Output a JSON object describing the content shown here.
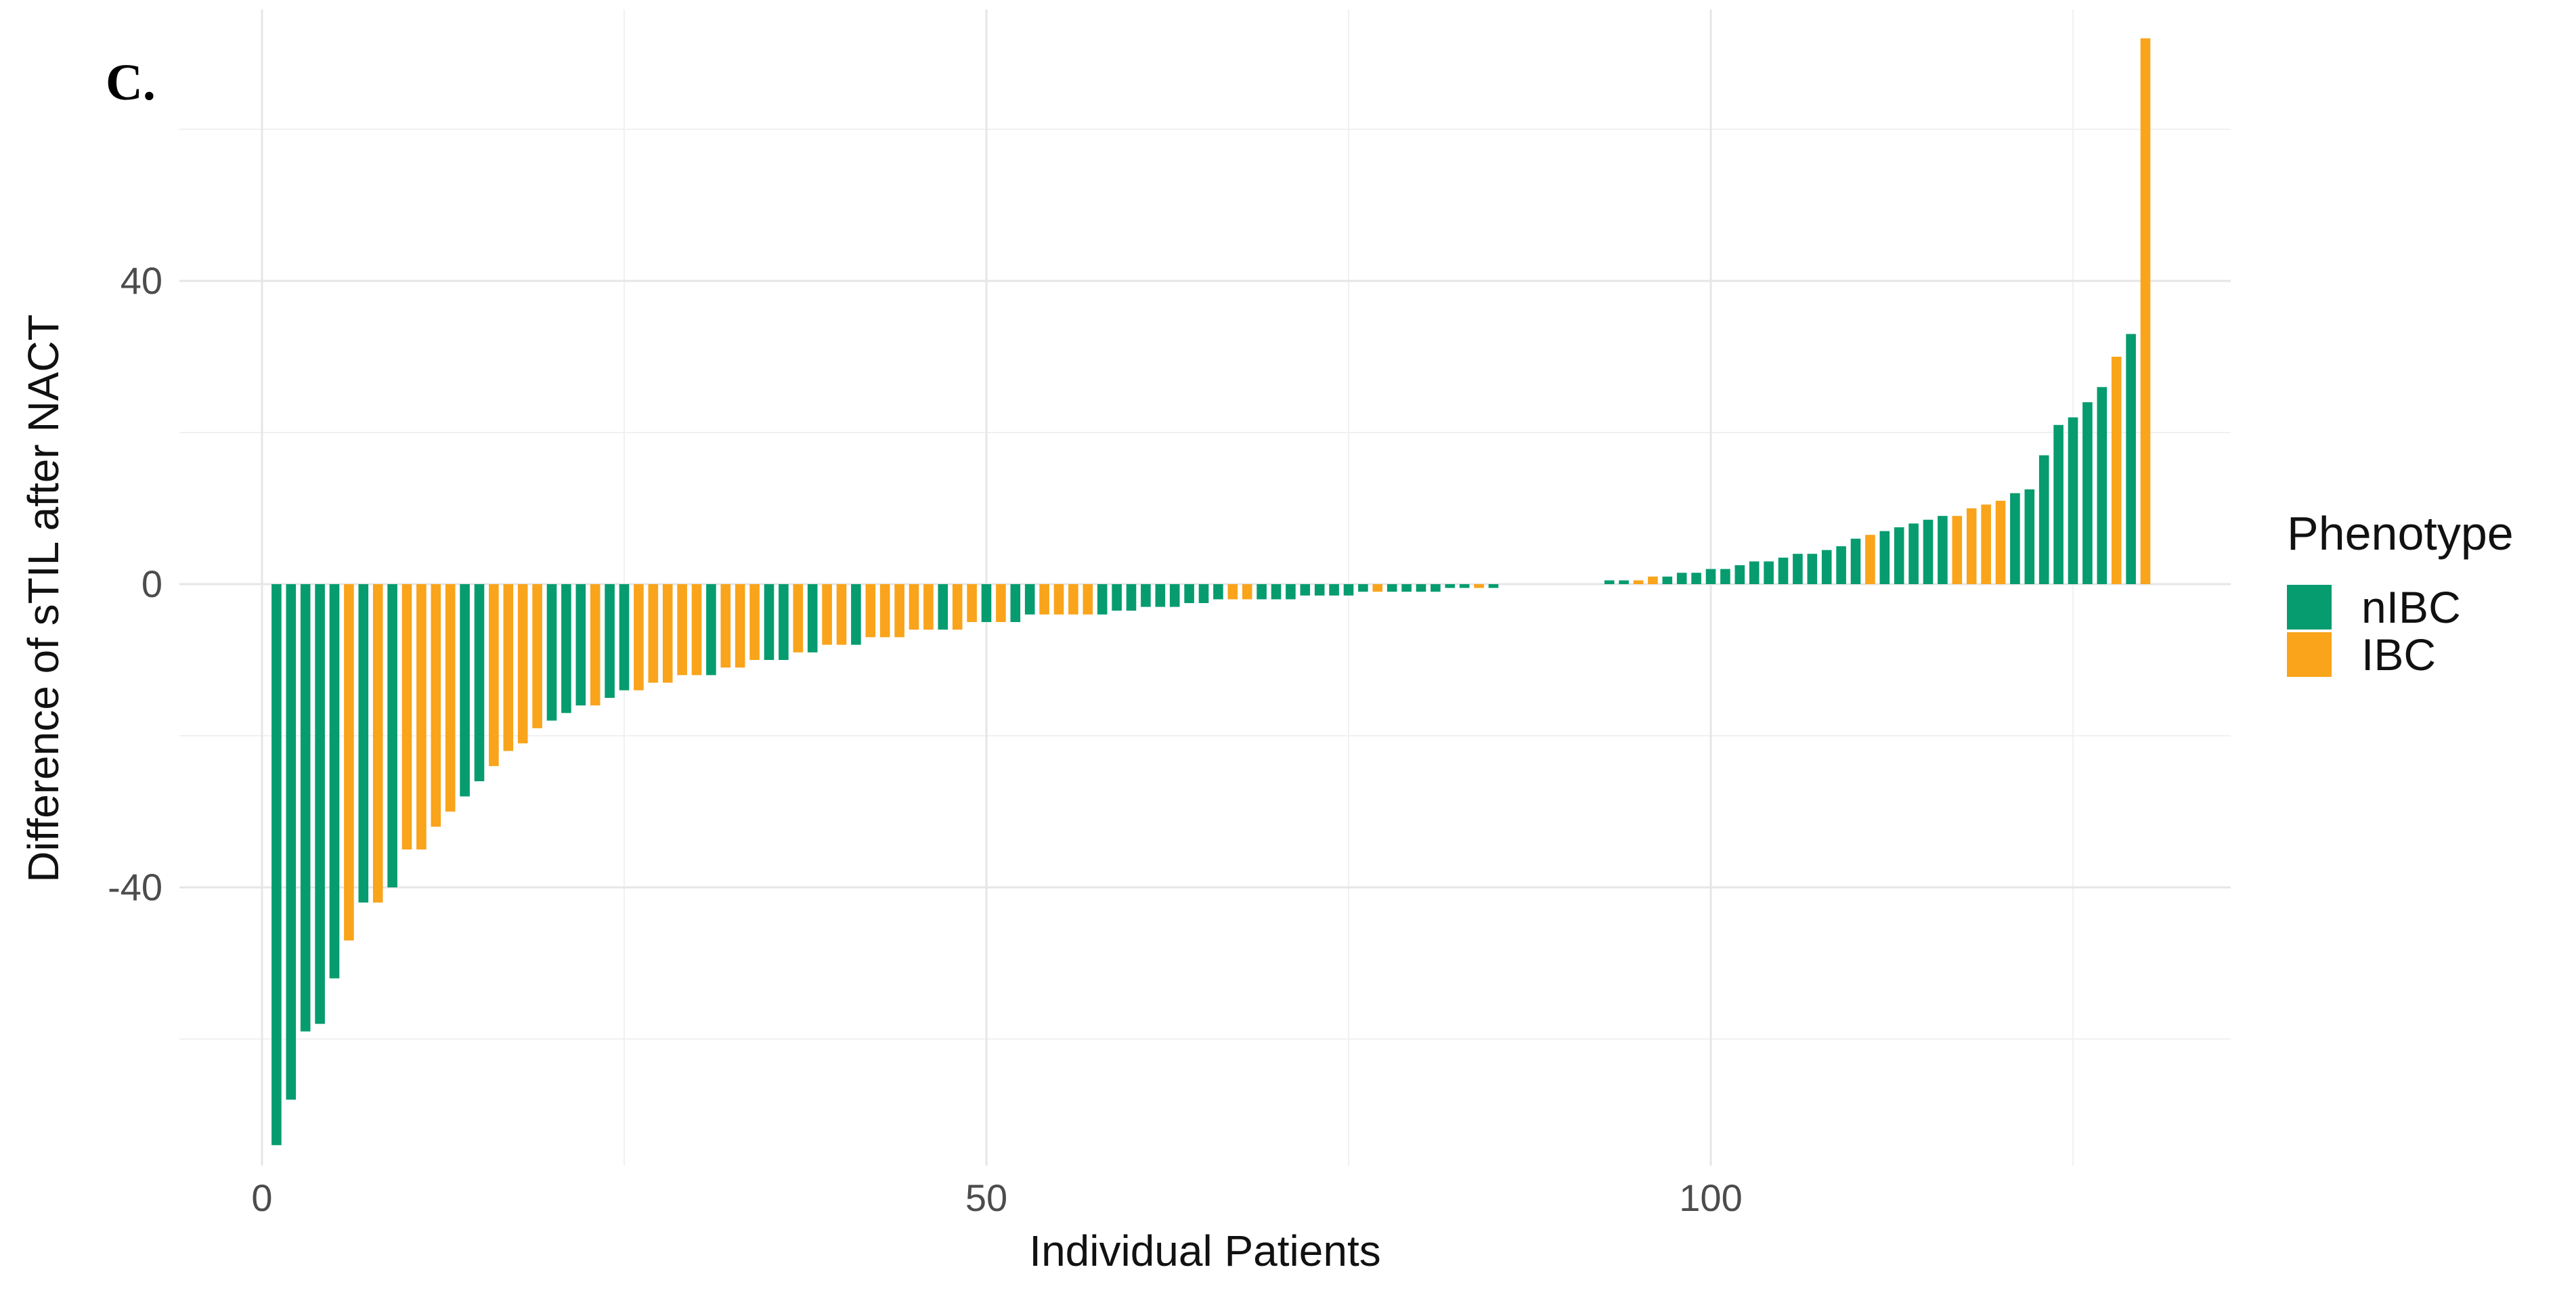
{
  "chart_data": {
    "type": "bar",
    "subtype": "waterfall",
    "panel_label": "C.",
    "title": "",
    "xlabel": "Individual Patients",
    "ylabel": "Difference of sTIL after NACT",
    "grid": "on",
    "background": "#ffffff",
    "grid_major_color": "#e6e6e6",
    "grid_minor_color": "#f1f1f1",
    "tick_label_color": "#4c4c4c",
    "axis_title_color": "#111111",
    "x_axis": {
      "ticks": [
        {
          "value": 0,
          "label": "0"
        },
        {
          "value": 50,
          "label": "50"
        },
        {
          "value": 100,
          "label": "100"
        }
      ],
      "minor_ticks": [
        25,
        75,
        125
      ],
      "range_units": [
        -5.5,
        135.5
      ]
    },
    "y_axis": {
      "ticks": [
        {
          "value": 40,
          "label": "40"
        },
        {
          "value": 0,
          "label": "0"
        },
        {
          "value": -40,
          "label": "-40"
        }
      ],
      "minor_ticks": [
        60,
        20,
        -20,
        -60
      ],
      "range_units": [
        -76.5,
        75.5
      ]
    },
    "legend": {
      "title": "Phenotype",
      "position": "right",
      "items": [
        {
          "label": "nIBC",
          "color": "#069C6F",
          "key": "g"
        },
        {
          "label": "IBC",
          "color": "#F9A41B",
          "key": "o"
        }
      ]
    },
    "series": [
      {
        "name": "Difference of sTIL after NACT",
        "x_meaning": "patient rank (1..130)",
        "values": [
          -74,
          -68,
          -59,
          -58,
          -52,
          -47,
          -42,
          -42,
          -40,
          -35,
          -35,
          -32,
          -30,
          -28,
          -26,
          -24,
          -22,
          -21,
          -19,
          -18,
          -17,
          -16,
          -16,
          -15,
          -14,
          -14,
          -13,
          -13,
          -12,
          -12,
          -12,
          -11,
          -11,
          -10,
          -10,
          -10,
          -9,
          -9,
          -8,
          -8,
          -8,
          -7,
          -7,
          -7,
          -6,
          -6,
          -6,
          -6,
          -5,
          -5,
          -5,
          -5,
          -4,
          -4,
          -4,
          -4,
          -4,
          -4,
          -3.5,
          -3.5,
          -3,
          -3,
          -3,
          -2.5,
          -2.5,
          -2,
          -2,
          -2,
          -2,
          -2,
          -2,
          -1.5,
          -1.5,
          -1.5,
          -1.5,
          -1,
          -1,
          -1,
          -1,
          -1,
          -1,
          -0.5,
          -0.5,
          -0.5,
          -0.5,
          0,
          0,
          0,
          0,
          0,
          0,
          0,
          0.5,
          0.5,
          0.5,
          1,
          1,
          1.5,
          1.5,
          2,
          2,
          2.5,
          3,
          3,
          3.5,
          4,
          4,
          4.5,
          5,
          6,
          6.5,
          7,
          7.5,
          8,
          8.5,
          9,
          9,
          10,
          10.5,
          11,
          12,
          12.5,
          17,
          21,
          22,
          24,
          26,
          30,
          33,
          72
        ],
        "phenotype": [
          "g",
          "g",
          "g",
          "g",
          "g",
          "o",
          "g",
          "o",
          "g",
          "o",
          "o",
          "o",
          "o",
          "g",
          "g",
          "o",
          "o",
          "o",
          "o",
          "g",
          "g",
          "g",
          "o",
          "g",
          "g",
          "o",
          "o",
          "o",
          "o",
          "o",
          "g",
          "o",
          "o",
          "o",
          "g",
          "g",
          "o",
          "g",
          "o",
          "o",
          "g",
          "o",
          "o",
          "o",
          "o",
          "o",
          "g",
          "o",
          "o",
          "g",
          "o",
          "g",
          "g",
          "o",
          "o",
          "o",
          "o",
          "g",
          "g",
          "g",
          "g",
          "g",
          "g",
          "g",
          "g",
          "g",
          "o",
          "o",
          "g",
          "g",
          "g",
          "g",
          "g",
          "g",
          "g",
          "g",
          "o",
          "g",
          "g",
          "g",
          "g",
          "g",
          "g",
          "o",
          "g",
          "g",
          "g",
          "g",
          "g",
          "g",
          "o",
          "g",
          "g",
          "g",
          "o",
          "o",
          "g",
          "g",
          "g",
          "g",
          "g",
          "g",
          "g",
          "g",
          "g",
          "g",
          "g",
          "g",
          "g",
          "g",
          "o",
          "g",
          "g",
          "g",
          "g",
          "g",
          "o",
          "o",
          "o",
          "o",
          "g",
          "g",
          "g",
          "g",
          "g",
          "g",
          "g",
          "o",
          "g",
          "o"
        ]
      }
    ]
  }
}
